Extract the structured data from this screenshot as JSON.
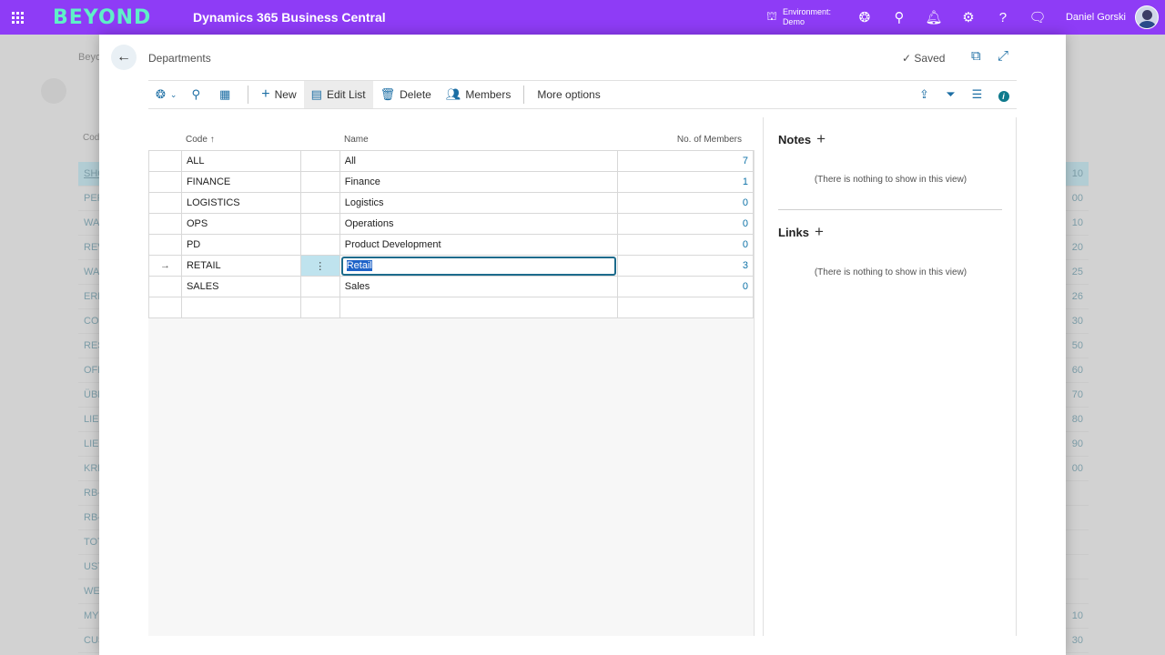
{
  "topbar": {
    "logo_text": "BEYOND",
    "app_title": "Dynamics 365 Business Central",
    "environment_label": "Environment:",
    "environment_value": "Demo",
    "user_name": "Daniel Gorski",
    "icons": [
      "copilot-icon",
      "search-icon",
      "bell-icon",
      "gear-icon",
      "help-icon",
      "feedback-icon"
    ]
  },
  "background": {
    "breadcrumb": "Beyo",
    "column_header": "Cod",
    "rows": [
      {
        "left": "SHO",
        "right": "10"
      },
      {
        "left": "PER",
        "right": "00"
      },
      {
        "left": "WA",
        "right": "10"
      },
      {
        "left": "REV",
        "right": "20"
      },
      {
        "left": "WA",
        "right": "25"
      },
      {
        "left": "ERL",
        "right": "26"
      },
      {
        "left": "CO",
        "right": "30"
      },
      {
        "left": "RES",
        "right": "50"
      },
      {
        "left": "OFF",
        "right": "60"
      },
      {
        "left": "ÜBE",
        "right": "70"
      },
      {
        "left": "LIEF",
        "right": "80"
      },
      {
        "left": "LIEF",
        "right": "90"
      },
      {
        "left": "KRE",
        "right": "00"
      },
      {
        "left": "RB-",
        "right": ""
      },
      {
        "left": "RB-",
        "right": ""
      },
      {
        "left": "TOT",
        "right": ""
      },
      {
        "left": "UST",
        "right": ""
      },
      {
        "left": "WE",
        "right": ""
      },
      {
        "left": "MY",
        "right": "10"
      },
      {
        "left": "CUS",
        "right": "30"
      }
    ]
  },
  "dialog": {
    "breadcrumb": "Departments",
    "saved_label": "Saved",
    "toolbar": {
      "new_label": "New",
      "edit_list_label": "Edit List",
      "delete_label": "Delete",
      "members_label": "Members",
      "more_options_label": "More options"
    },
    "grid": {
      "headers": {
        "code": "Code",
        "sort_indicator": "↑",
        "name": "Name",
        "members": "No. of Members"
      },
      "rows": [
        {
          "code": "ALL",
          "name": "All",
          "members": "7",
          "selected": false
        },
        {
          "code": "FINANCE",
          "name": "Finance",
          "members": "1",
          "selected": false
        },
        {
          "code": "LOGISTICS",
          "name": "Logistics",
          "members": "0",
          "selected": false
        },
        {
          "code": "OPS",
          "name": "Operations",
          "members": "0",
          "selected": false
        },
        {
          "code": "PD",
          "name": "Product Development",
          "members": "0",
          "selected": false
        },
        {
          "code": "RETAIL",
          "name": "Retail",
          "members": "3",
          "selected": true
        },
        {
          "code": "SALES",
          "name": "Sales",
          "members": "0",
          "selected": false
        }
      ]
    },
    "factbox": {
      "notes_title": "Notes",
      "notes_empty": "(There is nothing to show in this view)",
      "links_title": "Links",
      "links_empty": "(There is nothing to show in this view)"
    }
  }
}
